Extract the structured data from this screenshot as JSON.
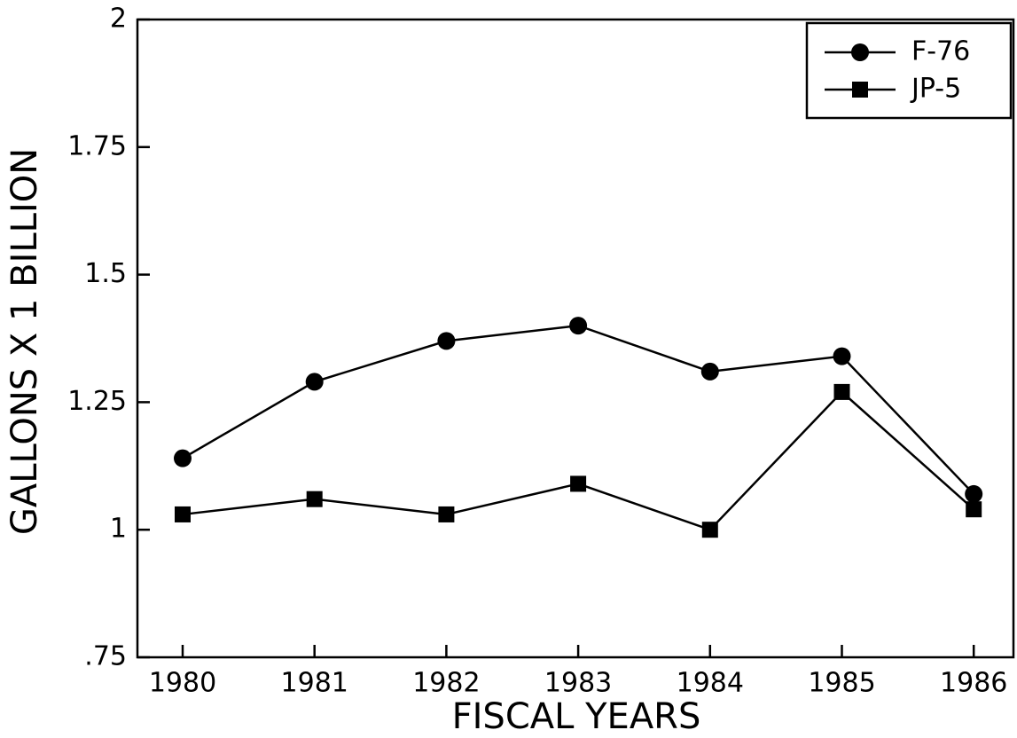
{
  "chart_data": {
    "type": "line",
    "xlabel": "FISCAL YEARS",
    "ylabel": "GALLONS X 1 BILLION",
    "categories": [
      "1980",
      "1981",
      "1982",
      "1983",
      "1984",
      "1985",
      "1986"
    ],
    "series": [
      {
        "name": "F-76",
        "color": "#000000",
        "marker": "circle",
        "values": [
          1.14,
          1.29,
          1.37,
          1.4,
          1.31,
          1.34,
          1.07
        ]
      },
      {
        "name": "JP-5",
        "color": "#000000",
        "marker": "square",
        "values": [
          1.03,
          1.06,
          1.03,
          1.09,
          1.0,
          1.27,
          1.04
        ]
      }
    ],
    "ylim": [
      0.75,
      2
    ],
    "yticks": [
      {
        "value": 0.75,
        "label": ".75"
      },
      1,
      1.25,
      1.5,
      1.75,
      2
    ],
    "legend": "upper-right"
  }
}
